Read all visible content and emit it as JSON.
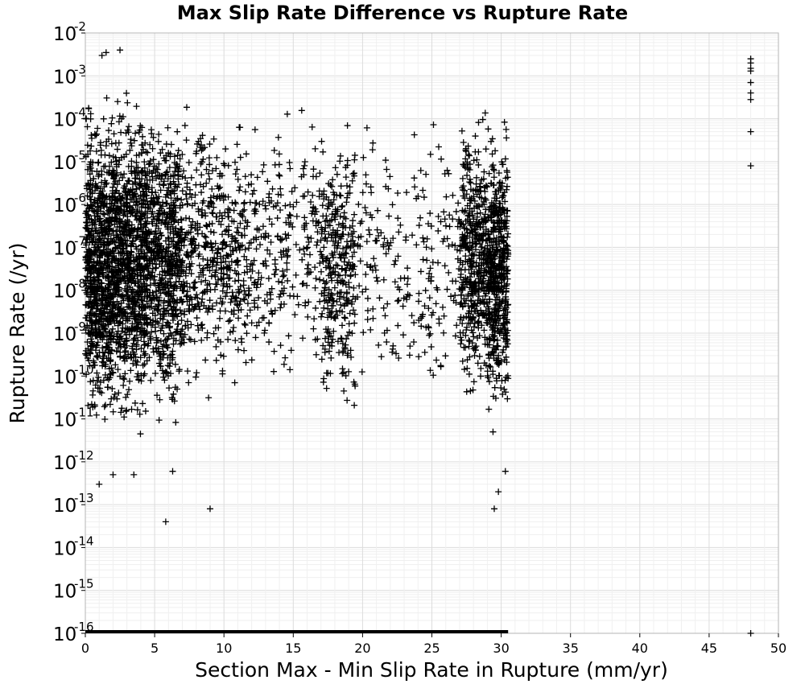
{
  "chart_data": {
    "type": "scatter",
    "title": "Max Slip Rate Difference vs Rupture Rate",
    "xlabel": "Section Max - Min Slip Rate in Rupture (mm/yr)",
    "ylabel": "Rupture Rate (/yr)",
    "xlim": [
      0,
      50
    ],
    "ylim_log10": [
      -16,
      -2
    ],
    "yscale": "log",
    "grid": true,
    "marker": "plus",
    "marker_color": "#000000",
    "xticks": [
      "0",
      "5",
      "10",
      "15",
      "20",
      "25",
      "30",
      "35",
      "40",
      "45",
      "50"
    ],
    "yticks": [
      {
        "base": "10",
        "exp": "-16"
      },
      {
        "base": "10",
        "exp": "-15"
      },
      {
        "base": "10",
        "exp": "-14"
      },
      {
        "base": "10",
        "exp": "-13"
      },
      {
        "base": "10",
        "exp": "-12"
      },
      {
        "base": "10",
        "exp": "-11"
      },
      {
        "base": "10",
        "exp": "-10"
      },
      {
        "base": "10",
        "exp": "-9"
      },
      {
        "base": "10",
        "exp": "-8"
      },
      {
        "base": "10",
        "exp": "-7"
      },
      {
        "base": "10",
        "exp": "-6"
      },
      {
        "base": "10",
        "exp": "-5"
      },
      {
        "base": "10",
        "exp": "-4"
      },
      {
        "base": "10",
        "exp": "-3"
      },
      {
        "base": "10",
        "exp": "-2"
      }
    ],
    "clusters": [
      {
        "x_range": [
          0.0,
          2.0
        ],
        "log10_y_range": [
          -11.8,
          -3.1
        ],
        "count": 800
      },
      {
        "x_range": [
          2.0,
          4.5
        ],
        "log10_y_range": [
          -11.7,
          -3.0
        ],
        "count": 900
      },
      {
        "x_range": [
          4.5,
          7.0
        ],
        "log10_y_range": [
          -11.5,
          -3.2
        ],
        "count": 650
      },
      {
        "x_range": [
          7.0,
          10.0
        ],
        "log10_y_range": [
          -11.0,
          -3.3
        ],
        "count": 330
      },
      {
        "x_range": [
          10.0,
          12.0
        ],
        "log10_y_range": [
          -11.0,
          -3.3
        ],
        "count": 170
      },
      {
        "x_range": [
          12.0,
          17.0
        ],
        "log10_y_range": [
          -11.0,
          -3.3
        ],
        "count": 250
      },
      {
        "x_range": [
          17.0,
          19.5
        ],
        "log10_y_range": [
          -11.3,
          -3.4
        ],
        "count": 320
      },
      {
        "x_range": [
          19.5,
          27.0
        ],
        "log10_y_range": [
          -11.0,
          -3.5
        ],
        "count": 230
      },
      {
        "x_range": [
          27.0,
          29.0
        ],
        "log10_y_range": [
          -11.0,
          -3.3
        ],
        "count": 450
      },
      {
        "x_range": [
          29.0,
          30.5
        ],
        "log10_y_range": [
          -11.6,
          -3.5
        ],
        "count": 520
      }
    ],
    "points": [
      {
        "x": 1.2,
        "y": 0.003
      },
      {
        "x": 1.5,
        "y": 0.0035
      },
      {
        "x": 2.5,
        "y": 0.004
      },
      {
        "x": 1.0,
        "y": 3e-13
      },
      {
        "x": 5.8,
        "y": 4e-14
      },
      {
        "x": 9.0,
        "y": 8e-14
      },
      {
        "x": 29.5,
        "y": 8e-14
      },
      {
        "x": 29.8,
        "y": 2e-13
      },
      {
        "x": 30.3,
        "y": 6e-13
      },
      {
        "x": 2.0,
        "y": 5e-13
      },
      {
        "x": 3.5,
        "y": 5e-13
      },
      {
        "x": 6.3,
        "y": 6e-13
      },
      {
        "x": 48.0,
        "y": 0.0025
      },
      {
        "x": 48.0,
        "y": 0.002
      },
      {
        "x": 48.0,
        "y": 0.0015
      },
      {
        "x": 48.0,
        "y": 0.0013
      },
      {
        "x": 48.0,
        "y": 0.0007
      },
      {
        "x": 48.0,
        "y": 0.0004
      },
      {
        "x": 48.0,
        "y": 0.00028
      },
      {
        "x": 48.0,
        "y": 5e-05
      },
      {
        "x": 48.0,
        "y": 8e-06
      },
      {
        "x": 48.0,
        "y": 1e-16
      }
    ],
    "floor_band": {
      "x_range": [
        0,
        30.5
      ],
      "y": 1e-16
    }
  }
}
